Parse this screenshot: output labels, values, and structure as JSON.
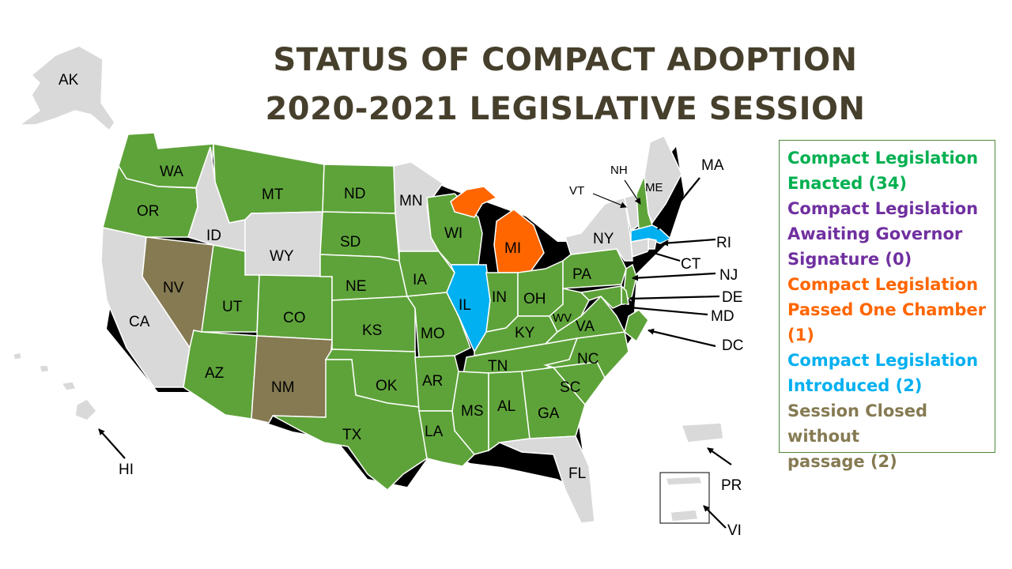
{
  "title": {
    "line1": "STATUS OF COMPACT ADOPTION",
    "line2": "2020-2021 LEGISLATIVE SESSION"
  },
  "colors": {
    "enacted": "#5ea33a",
    "awaiting": "#7030a0",
    "passed_one": "#ff6600",
    "introduced": "#00b0f0",
    "closed": "#857a52",
    "none": "#d9d9d9",
    "title": "#453f2c",
    "legend_enacted_text": "#00b050"
  },
  "legend": [
    {
      "line1": "Compact Legislation",
      "line2": "Enacted (34)",
      "color": "#00b050"
    },
    {
      "line1": "Compact Legislation",
      "line2": "Awaiting Governor",
      "line3": "Signature (0)",
      "color": "#7030a0"
    },
    {
      "line1": "Compact Legislation",
      "line2": "Passed One Chamber",
      "line3": "(1)",
      "color": "#ff6600"
    },
    {
      "line1": "Compact Legislation",
      "line2": "Introduced (2)",
      "color": "#00b0f0"
    },
    {
      "line1": "Session Closed without",
      "line2": "passage (2)",
      "color": "#857a52"
    }
  ],
  "states": {
    "WA": "enacted",
    "OR": "enacted",
    "CA": "none",
    "NV": "closed",
    "ID": "none",
    "MT": "enacted",
    "WY": "none",
    "UT": "enacted",
    "AZ": "enacted",
    "CO": "enacted",
    "NM": "closed",
    "ND": "enacted",
    "SD": "enacted",
    "NE": "enacted",
    "KS": "enacted",
    "OK": "enacted",
    "TX": "enacted",
    "MN": "none",
    "IA": "enacted",
    "MO": "enacted",
    "AR": "enacted",
    "LA": "enacted",
    "WI": "enacted",
    "IL": "introduced",
    "MI": "passed_one",
    "IN": "enacted",
    "OH": "enacted",
    "KY": "enacted",
    "TN": "enacted",
    "MS": "enacted",
    "AL": "enacted",
    "GA": "enacted",
    "FL": "none",
    "SC": "enacted",
    "NC": "enacted",
    "VA": "enacted",
    "WV": "enacted",
    "PA": "enacted",
    "NY": "none",
    "VT": "none",
    "NH": "enacted",
    "ME": "none",
    "MA": "introduced",
    "RI": "none",
    "CT": "none",
    "NJ": "enacted",
    "DE": "enacted",
    "MD": "enacted",
    "DC": "enacted",
    "AK": "none",
    "HI": "none",
    "PR": "none",
    "VI": "none"
  },
  "labels": {
    "WA": "WA",
    "OR": "OR",
    "CA": "CA",
    "NV": "NV",
    "ID": "ID",
    "MT": "MT",
    "WY": "WY",
    "UT": "UT",
    "AZ": "AZ",
    "CO": "CO",
    "NM": "NM",
    "ND": "ND",
    "SD": "SD",
    "NE": "NE",
    "KS": "KS",
    "OK": "OK",
    "TX": "TX",
    "MN": "MN",
    "IA": "IA",
    "MO": "MO",
    "AR": "AR",
    "LA": "LA",
    "WI": "WI",
    "IL": "IL",
    "MI": "MI",
    "IN": "IN",
    "OH": "OH",
    "KY": "KY",
    "TN": "TN",
    "MS": "MS",
    "AL": "AL",
    "GA": "GA",
    "FL": "FL",
    "SC": "SC",
    "NC": "NC",
    "VA": "VA",
    "WV": "WV",
    "PA": "PA",
    "NY": "NY",
    "VT": "VT",
    "NH": "NH",
    "ME": "ME",
    "MA": "MA",
    "RI": "RI",
    "CT": "CT",
    "NJ": "NJ",
    "DE": "DE",
    "MD": "MD",
    "DC": "DC",
    "AK": "AK",
    "HI": "HI",
    "PR": "PR",
    "VI": "VI"
  }
}
